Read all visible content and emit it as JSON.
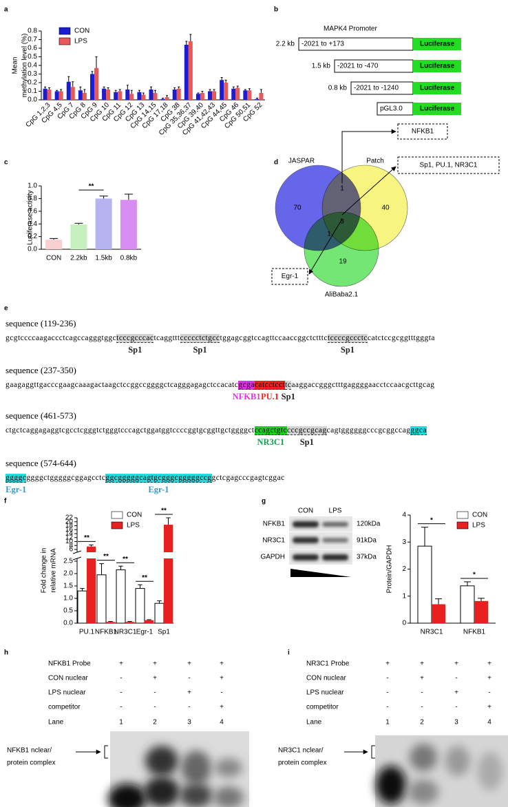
{
  "panel_labels": [
    "a",
    "b",
    "c",
    "d",
    "e",
    "f",
    "g",
    "h",
    "i"
  ],
  "chart_data": [
    {
      "type": "bar",
      "ylabel": [
        "Mean",
        "methylation level (%)"
      ],
      "categories": [
        "CpG 1,2,3",
        "CpG 4,5",
        "CpG 7",
        "CpG 8",
        "CpG 9",
        "CpG 10",
        "CpG 11",
        "CpG 12",
        "CpG 13",
        "CpG 14,15",
        "CpG 17,18",
        "CpG 38",
        "CpG 35,36,37",
        "CpG 39,40",
        "CpG 41,42,43",
        "CpG 44,45",
        "CpG 46",
        "CpG 50,51",
        "CpG 52"
      ],
      "series": [
        {
          "name": "CON",
          "color": "#1c1cd0",
          "values": [
            0.13,
            0.1,
            0.21,
            0.11,
            0.3,
            0.13,
            0.09,
            0.12,
            0.09,
            0.12,
            0.01,
            0.12,
            0.64,
            0.07,
            0.1,
            0.23,
            0.13,
            0.11,
            0.01
          ],
          "errors": [
            0.02,
            0.01,
            0.06,
            0.04,
            0.03,
            0.02,
            0.02,
            0.05,
            0.02,
            0.03,
            0.01,
            0.02,
            0.04,
            0.01,
            0.02,
            0.03,
            0.02,
            0.01,
            0.01
          ]
        },
        {
          "name": "LPS",
          "color": "#e85a5a",
          "values": [
            0.12,
            0.1,
            0.15,
            0.08,
            0.37,
            0.12,
            0.1,
            0.07,
            0.06,
            0.08,
            0.03,
            0.13,
            0.68,
            0.08,
            0.1,
            0.2,
            0.14,
            0.11,
            0.08
          ],
          "errors": [
            0.02,
            0.02,
            0.06,
            0.04,
            0.13,
            0.02,
            0.02,
            0.04,
            0.02,
            0.03,
            0.02,
            0.02,
            0.08,
            0.02,
            0.02,
            0.03,
            0.02,
            0.02,
            0.04
          ]
        }
      ],
      "ylim": [
        0,
        0.8
      ],
      "yticks": [
        {
          "value": 0,
          "label": "0.0"
        },
        0.1,
        0.2,
        0.3,
        0.4,
        0.5,
        0.6,
        0.7,
        0.8
      ]
    },
    {
      "type": "bar",
      "ylabel": [
        "Luciferase activity"
      ],
      "categories": [
        "CON",
        "2.2kb",
        "1.5kb",
        "0.8kb"
      ],
      "values": [
        0.15,
        0.39,
        0.8,
        0.78
      ],
      "errors": [
        0.02,
        0.02,
        0.04,
        0.09
      ],
      "colors": [
        "#f8d0d0",
        "#c6efbe",
        "#b4b4f0",
        "#d88ef0"
      ],
      "ylim": [
        0,
        1.0
      ],
      "yticks": [
        {
          "value": 0,
          "label": "0.0"
        },
        0.2,
        0.4,
        0.6,
        0.8,
        {
          "value": 1.0,
          "label": "1.0"
        }
      ],
      "annotations": [
        "**"
      ]
    },
    {
      "type": "bar",
      "ylabel": [
        "Fold change in",
        "relative mRNA"
      ],
      "categories": [
        "PU.1",
        "NFKB1",
        "NR3C1",
        "Egr-1",
        "Sp1"
      ],
      "series": [
        {
          "name": "CON",
          "color": "#ffffff",
          "values": [
            1.3,
            1.95,
            2.15,
            1.4,
            0.8
          ],
          "errors": [
            0.1,
            0.45,
            0.15,
            0.15,
            0.1
          ]
        },
        {
          "name": "LPS",
          "color": "#e82020",
          "values": [
            7.5,
            0.05,
            0.05,
            0.12,
            18.5
          ],
          "errors": [
            0.8,
            0.02,
            0.02,
            0.02,
            3.5
          ]
        }
      ],
      "ylim": [
        0,
        22
      ],
      "ybreak": [
        2.5,
        6
      ],
      "yticks": [
        {
          "value": 0,
          "label": "0.0"
        },
        0.5,
        {
          "value": 1.0,
          "label": "1.0"
        },
        1.5,
        {
          "value": 2.0,
          "label": "2.0"
        },
        2.5,
        6,
        8,
        10,
        12,
        14,
        16,
        18,
        20,
        22
      ],
      "annotations": [
        "**",
        "**",
        "**",
        "**",
        "**"
      ]
    },
    {
      "type": "bar",
      "ylabel": [
        "Protein/GAPDH"
      ],
      "categories": [
        "NR3C1",
        "NFKB1"
      ],
      "series": [
        {
          "name": "CON",
          "color": "#ffffff",
          "values": [
            2.85,
            1.38
          ],
          "errors": [
            0.7,
            0.15
          ]
        },
        {
          "name": "LPS",
          "color": "#e82020",
          "values": [
            0.7,
            0.82
          ],
          "errors": [
            0.2,
            0.1
          ]
        }
      ],
      "ylim": [
        0,
        4
      ],
      "yticks": [
        0,
        1,
        2,
        3,
        4
      ],
      "annotations": [
        "*",
        "*"
      ]
    }
  ],
  "promoter": {
    "title": "MAPK4 Promoter",
    "reporter_color": "#22dd22",
    "constructs": [
      {
        "size": "2.2 kb",
        "range": "-2021 to +173",
        "reporter": "Luciferase"
      },
      {
        "size": "1.5 kb",
        "range": "-2021 to -470",
        "reporter": "Luciferase"
      },
      {
        "size": "0.8 kb",
        "range": "-2021 to -1240",
        "reporter": "Luciferase"
      },
      {
        "range": "pGL3.0",
        "reporter": "Luciferase"
      }
    ]
  },
  "venn": {
    "sets": [
      {
        "name": "JASPAR",
        "color": "#4b4be6",
        "text_color": "#4040d0"
      },
      {
        "name": "Patch",
        "color": "#f6f36a",
        "text_color": "#d8c420"
      },
      {
        "name": "AliBaba2.1",
        "color": "#5ce25c",
        "text_color": "#40c040"
      }
    ],
    "regions": [
      {
        "count": 70
      },
      {
        "count": 40
      },
      {
        "count": 19
      },
      {
        "count": 1
      },
      {
        "count": 3
      },
      {
        "count": 1
      }
    ],
    "callouts": [
      "NFKB1",
      "Sp1, PU.1, NR3C1",
      "Egr-1"
    ]
  },
  "sequences": [
    {
      "title": "sequence (119-236)",
      "segments": [
        "gcgtccccaagaccctcagccagggtggc",
        {
          "text": "tcccgcccac",
          "highlight": "#d3d3d3",
          "site": "Sp1",
          "site_color": "#222222"
        },
        "tcaggttt",
        {
          "text": "ccccctctgcc",
          "highlight": "#d3d3d3",
          "site": "Sp1",
          "site_color": "#222222"
        },
        "tggagcggtccagttccaaccggctctttc",
        {
          "text": "tccccgccctc",
          "highlight": "#d3d3d3",
          "site": "Sp1",
          "site_color": "#222222"
        },
        "catctccgcggtttgggta"
      ]
    },
    {
      "title": "sequence (237-350)",
      "segments": [
        "gaagaggttgacccgaagcaaagactaagctccggccggggctcagggagagctccacatc",
        {
          "text": "gcga",
          "highlight": "#e030e0",
          "site": "NFKB1",
          "site_color": "#e030e0"
        },
        {
          "text": "catcctcct",
          "highlight": "#ee2020",
          "site": "PU.1",
          "site_color": "#ee2020"
        },
        {
          "text": "tc",
          "highlight": "#d3d3d3",
          "site": "Sp1",
          "site_color": "#222222"
        },
        "aaggaccgggctttgaggggaacctccaacgcttgcag"
      ]
    },
    {
      "title": "sequence (461-573)",
      "segments": [
        "ctgctcaggagaggtcgcctcgggtctgggtcccagctggatggtccccggtgcggttgctggggct",
        {
          "text": "ccagctgtc",
          "highlight": "#22cc22",
          "site": "NR3C1",
          "site_color": "#10a050"
        },
        {
          "text": "cccgccgcag",
          "highlight": "#d3d3d3",
          "site": "Sp1",
          "site_color": "#222222"
        },
        "cagtggggggcccgcggccag",
        {
          "text": "ggca",
          "highlight": "#22dddd"
        }
      ]
    },
    {
      "title": "sequence (574-644)",
      "segments": [
        {
          "text": "ggggc",
          "highlight": "#22dddd",
          "site": "Egr-1",
          "site_color": "#3399cc"
        },
        "ggggctgggggcggagcctc",
        {
          "text": "ggcgggggcagtgcgggcgggggccg",
          "highlight": "#22dddd",
          "site": "Egr-1",
          "site_color": "#3399cc"
        },
        "gctcgagcccgagtcggac"
      ]
    }
  ],
  "western_blot": {
    "lanes": [
      "CON",
      "LPS"
    ],
    "proteins": [
      {
        "name": "NFKB1",
        "size": "120kDa"
      },
      {
        "name": "NR3C1",
        "size": "91kDa"
      },
      {
        "name": "GAPDH",
        "size": "37kDa"
      }
    ]
  },
  "emsa": [
    {
      "rows": [
        {
          "label": "NFKB1 Probe",
          "lanes": [
            "+",
            "+",
            "+",
            "+"
          ]
        },
        {
          "label": "CON nuclear",
          "lanes": [
            "-",
            "+",
            "-",
            "+"
          ]
        },
        {
          "label": "LPS nuclear",
          "lanes": [
            "-",
            "-",
            "+",
            "-"
          ]
        },
        {
          "label": "competitor",
          "lanes": [
            "-",
            "-",
            "-",
            "+"
          ]
        },
        {
          "label": "Lane",
          "lanes": [
            "1",
            "2",
            "3",
            "4"
          ]
        }
      ],
      "complex_label": [
        "NFKB1 nclear/",
        "protein complex"
      ]
    },
    {
      "rows": [
        {
          "label": "NR3C1 Probe",
          "lanes": [
            "+",
            "+",
            "+",
            "+"
          ]
        },
        {
          "label": "CON nuclear",
          "lanes": [
            "-",
            "+",
            "-",
            "+"
          ]
        },
        {
          "label": "LPS nuclear",
          "lanes": [
            "-",
            "-",
            "+",
            "-"
          ]
        },
        {
          "label": "competitor",
          "lanes": [
            "-",
            "-",
            "-",
            "+"
          ]
        },
        {
          "label": "Lane",
          "lanes": [
            "1",
            "2",
            "3",
            "4"
          ]
        }
      ],
      "complex_label": [
        "NR3C1 nclear/",
        "protein complex"
      ]
    }
  ]
}
